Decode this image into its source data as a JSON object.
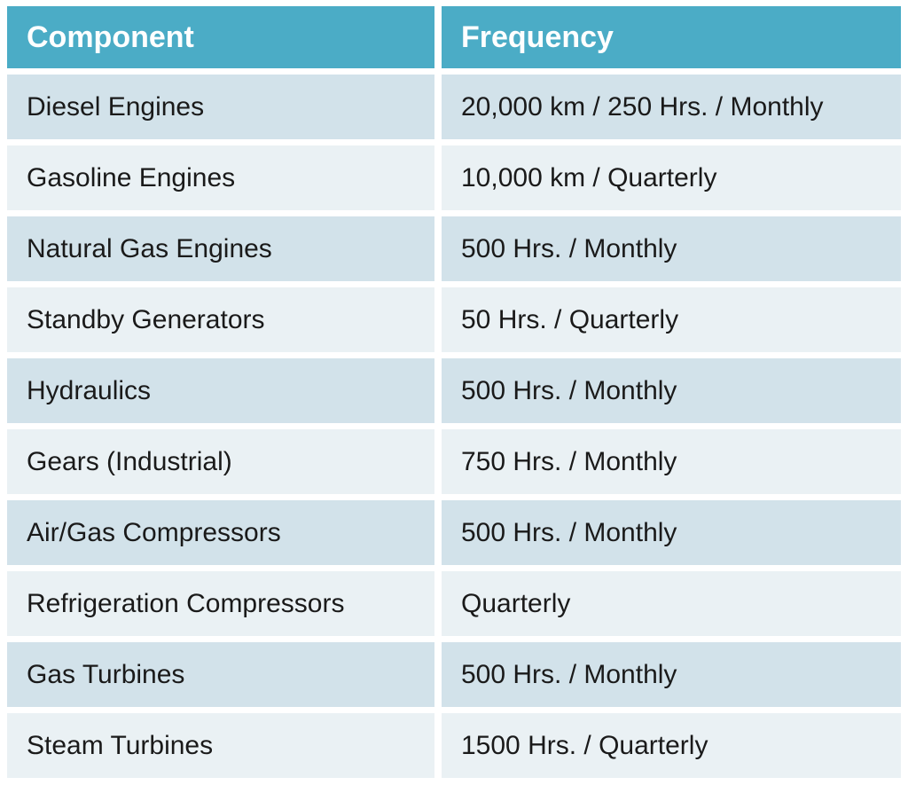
{
  "table": {
    "name": "lubrication-maintenance-frequency-table",
    "columns": [
      "Component",
      "Frequency"
    ],
    "rows": [
      {
        "component": "Diesel Engines",
        "frequency": "20,000 km / 250 Hrs. / Monthly"
      },
      {
        "component": "Gasoline Engines",
        "frequency": "10,000 km / Quarterly"
      },
      {
        "component": "Natural Gas Engines",
        "frequency": "500 Hrs. / Monthly"
      },
      {
        "component": "Standby Generators",
        "frequency": "50 Hrs. / Quarterly"
      },
      {
        "component": "Hydraulics",
        "frequency": "500 Hrs. / Monthly"
      },
      {
        "component": "Gears (Industrial)",
        "frequency": "750 Hrs. / Monthly"
      },
      {
        "component": "Air/Gas Compressors",
        "frequency": "500 Hrs. / Monthly"
      },
      {
        "component": "Refrigeration Compressors",
        "frequency": "Quarterly"
      },
      {
        "component": "Gas Turbines",
        "frequency": "500 Hrs. / Monthly"
      },
      {
        "component": "Steam Turbines",
        "frequency": "1500 Hrs. / Quarterly"
      }
    ],
    "colors": {
      "header_bg": "#4BACC6",
      "header_text": "#FFFFFF",
      "row_band_dark": "#D2E2EA",
      "row_band_light": "#EAF1F4",
      "cell_text": "#1A1A1A",
      "gutter": "#FFFFFF"
    }
  }
}
